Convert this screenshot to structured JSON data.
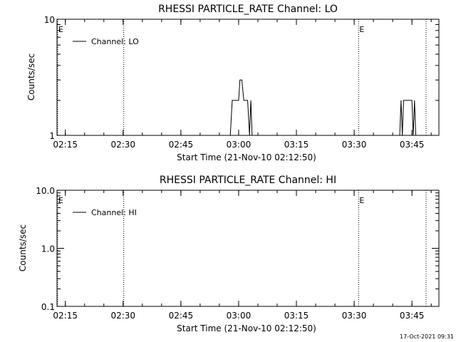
{
  "footer": {
    "timestamp": "17-Oct-2021 09:31"
  },
  "chart_data": [
    {
      "type": "line",
      "title": "RHESSI PARTICLE_RATE Channel: LO",
      "xlabel": "Start Time (21-Nov-10 02:12:50)",
      "ylabel": "Counts/sec",
      "yscale": "log",
      "ylim": [
        1,
        10
      ],
      "y_tick_labels": [
        "1",
        "10"
      ],
      "y_ticks": [
        1,
        10
      ],
      "xlim": [
        "02:12:50",
        "03:52:00"
      ],
      "x_tick_labels": [
        "02:15",
        "02:30",
        "02:45",
        "03:00",
        "03:15",
        "03:30",
        "03:45"
      ],
      "legend": {
        "label": "Channel: LO",
        "position": "top-left"
      },
      "event_marker_label": "E",
      "vertical_markers": [
        "02:13:00",
        "02:30:10",
        "03:31:10",
        "03:48:40"
      ],
      "series": [
        {
          "name": "Channel: LO",
          "segments": [
            [
              [
                "02:57:50",
                1
              ],
              [
                "02:58:20",
                2
              ],
              [
                "03:00:00",
                2
              ],
              [
                "03:00:20",
                3
              ],
              [
                "03:00:50",
                3
              ],
              [
                "03:01:20",
                2
              ],
              [
                "03:02:20",
                2
              ],
              [
                "03:02:50",
                1
              ],
              [
                "03:03:10",
                2
              ],
              [
                "03:03:30",
                1
              ]
            ],
            [
              [
                "03:41:50",
                1
              ],
              [
                "03:42:10",
                2
              ],
              [
                "03:42:30",
                1
              ],
              [
                "03:42:50",
                2
              ],
              [
                "03:45:00",
                2
              ],
              [
                "03:45:20",
                1
              ],
              [
                "03:45:40",
                2
              ],
              [
                "03:46:00",
                1
              ]
            ]
          ]
        }
      ]
    },
    {
      "type": "line",
      "title": "RHESSI PARTICLE_RATE Channel: HI",
      "xlabel": "Start Time (21-Nov-10 02:12:50)",
      "ylabel": "Counts/sec",
      "yscale": "log",
      "ylim": [
        0.1,
        10
      ],
      "y_tick_labels": [
        "0.1",
        "1.0",
        "10.0"
      ],
      "y_ticks": [
        0.1,
        1,
        10
      ],
      "xlim": [
        "02:12:50",
        "03:52:00"
      ],
      "x_tick_labels": [
        "02:15",
        "02:30",
        "02:45",
        "03:00",
        "03:15",
        "03:30",
        "03:45"
      ],
      "legend": {
        "label": "Channel: HI",
        "position": "top-left"
      },
      "event_marker_label": "E",
      "vertical_markers": [
        "02:13:00",
        "02:30:10",
        "03:31:10",
        "03:48:40"
      ],
      "series": [
        {
          "name": "Channel: HI",
          "segments": []
        }
      ]
    }
  ]
}
